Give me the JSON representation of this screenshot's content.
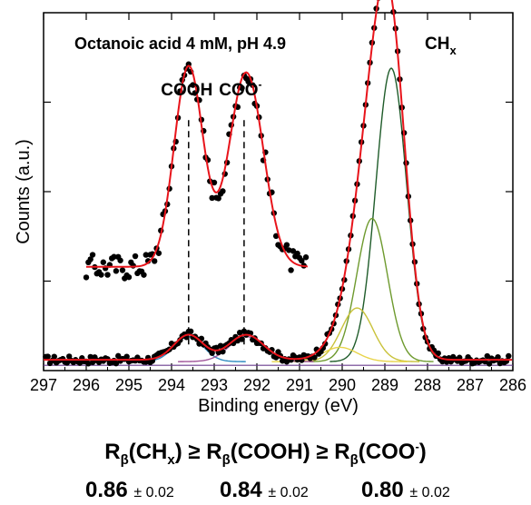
{
  "chart_data": {
    "type": "scatter",
    "title": "Octanoic acid 4 mM, pH 4.9",
    "xlabel": "Binding energy (eV)",
    "ylabel": "Counts (a.u.)",
    "xlim": [
      297,
      286
    ],
    "x_reversed": true,
    "ylim": [
      0,
      1
    ],
    "xticks": [
      "297",
      "296",
      "295",
      "294",
      "293",
      "292",
      "291",
      "290",
      "289",
      "288",
      "287",
      "286"
    ],
    "grid": false,
    "annotations": [
      {
        "text": "COOH",
        "x": 293.6
      },
      {
        "text": "COO",
        "sup": "-",
        "x": 292.3
      },
      {
        "text": "CH",
        "sub": "x",
        "x": 288.9
      }
    ],
    "colors": {
      "data_points": "#000000",
      "envelope_fit": "#e8141b",
      "peak_CHx_main": "#1f5c2a",
      "peak_CHx_second": "#6e9a2e",
      "peak_CHx_third": "#c9c23a",
      "peak_CHx_fourth": "#e8d44a",
      "peak_COOH": "#2e8bc0",
      "peak_COO": "#a0559a",
      "baseline": "#6a3d8f",
      "marker_lines": "#000000"
    },
    "components": [
      {
        "center": 288.85,
        "amplitude": 0.82,
        "sigma": 0.36
      },
      {
        "center": 289.3,
        "amplitude": 0.4,
        "sigma": 0.36
      },
      {
        "center": 289.65,
        "amplitude": 0.15,
        "sigma": 0.37
      },
      {
        "center": 290.05,
        "amplitude": 0.04,
        "sigma": 0.4
      },
      {
        "center": 293.6,
        "amplitude": 0.07,
        "sigma": 0.34
      },
      {
        "center": 292.25,
        "amplitude": 0.07,
        "sigma": 0.4
      }
    ],
    "baseline_level": 0.03,
    "inset_series": {
      "x_range": [
        296.0,
        290.8
      ],
      "scale_factor": 8,
      "offset": 0.29
    }
  },
  "formula": {
    "R": "R",
    "beta": "β",
    "chx": "CH",
    "chx_sub": "x",
    "cooh": "COOH",
    "coo": "COO",
    "coo_sup": "-",
    "ge": "≥"
  },
  "ratios": [
    {
      "value": "0.86",
      "error": "± 0.02"
    },
    {
      "value": "0.84",
      "error": "± 0.02"
    },
    {
      "value": "0.80",
      "error": "± 0.02"
    }
  ]
}
